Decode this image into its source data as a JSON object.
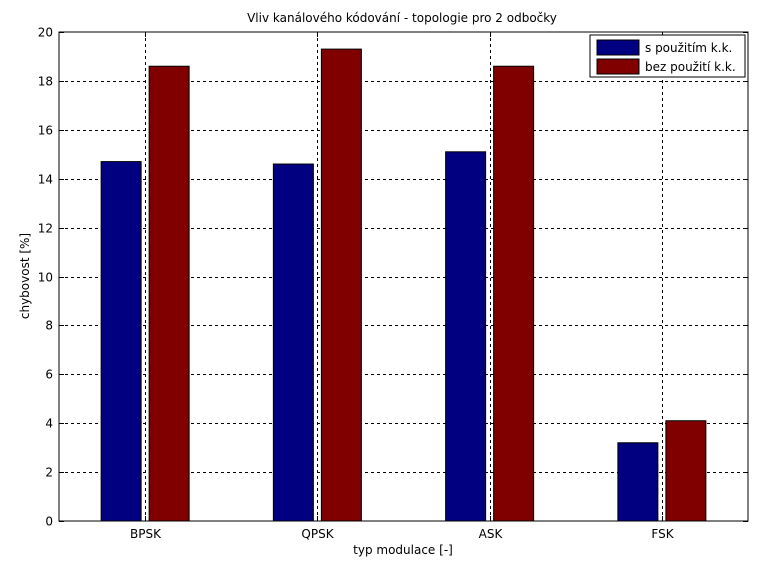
{
  "chart_data": {
    "type": "bar",
    "title": "Vliv kanálového kódování - topologie pro 2 odbočky",
    "xlabel": "typ modulace [-]",
    "ylabel": "chybovost [%]",
    "categories": [
      "BPSK",
      "QPSK",
      "ASK",
      "FSK"
    ],
    "series": [
      {
        "name": "s použitím k.k.",
        "color": "#000080",
        "values": [
          14.7,
          14.6,
          15.1,
          3.2
        ]
      },
      {
        "name": "bez použití k.k.",
        "color": "#800000",
        "values": [
          18.6,
          19.3,
          18.6,
          4.1
        ]
      }
    ],
    "ylim": [
      0,
      20
    ],
    "yticks": [
      "0",
      "2",
      "4",
      "6",
      "8",
      "10",
      "12",
      "14",
      "16",
      "18",
      "20"
    ],
    "grid": true,
    "legend_position": "top-right"
  }
}
